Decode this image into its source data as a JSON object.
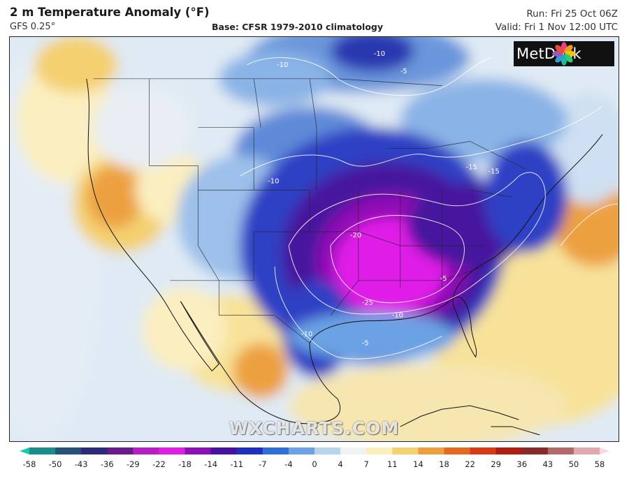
{
  "header": {
    "title": "2 m Temperature Anomaly (°F)",
    "model": "GFS 0.25°",
    "base": "Base: CFSR 1979-2010 climatology",
    "run": "Run: Fri 25 Oct 06Z",
    "valid": "Valid: Fri 1 Nov 12:00 UTC"
  },
  "logo": {
    "text": "MetDesk",
    "icon": "metdesk-flower-logo"
  },
  "watermark": "WXCHARTS.COM",
  "colorbar": {
    "ticks": [
      "-58",
      "-50",
      "-43",
      "-36",
      "-29",
      "-22",
      "-18",
      "-14",
      "-11",
      "-7",
      "-4",
      "0",
      "4",
      "7",
      "11",
      "14",
      "18",
      "22",
      "29",
      "36",
      "43",
      "50",
      "58"
    ],
    "colors": [
      "#18c9b0",
      "#1a8d8a",
      "#25527a",
      "#2d2a7a",
      "#6a1a8a",
      "#b81ec4",
      "#e01ee8",
      "#8e10b4",
      "#46129e",
      "#1f2fc0",
      "#2f6fd8",
      "#6aa2e4",
      "#b8d4ec",
      "#f2f2f4",
      "#fbf0bc",
      "#f4d070",
      "#eda040",
      "#e46a20",
      "#d83a16",
      "#b01e12",
      "#882a2a",
      "#b06a6a",
      "#e0a8b0",
      "#f8d8e0"
    ]
  },
  "contour_labels": [
    "-10",
    "-10",
    "-5",
    "-15",
    "-15",
    "-10",
    "-20",
    "-25",
    "-10",
    "-10",
    "-5",
    "-5"
  ]
}
